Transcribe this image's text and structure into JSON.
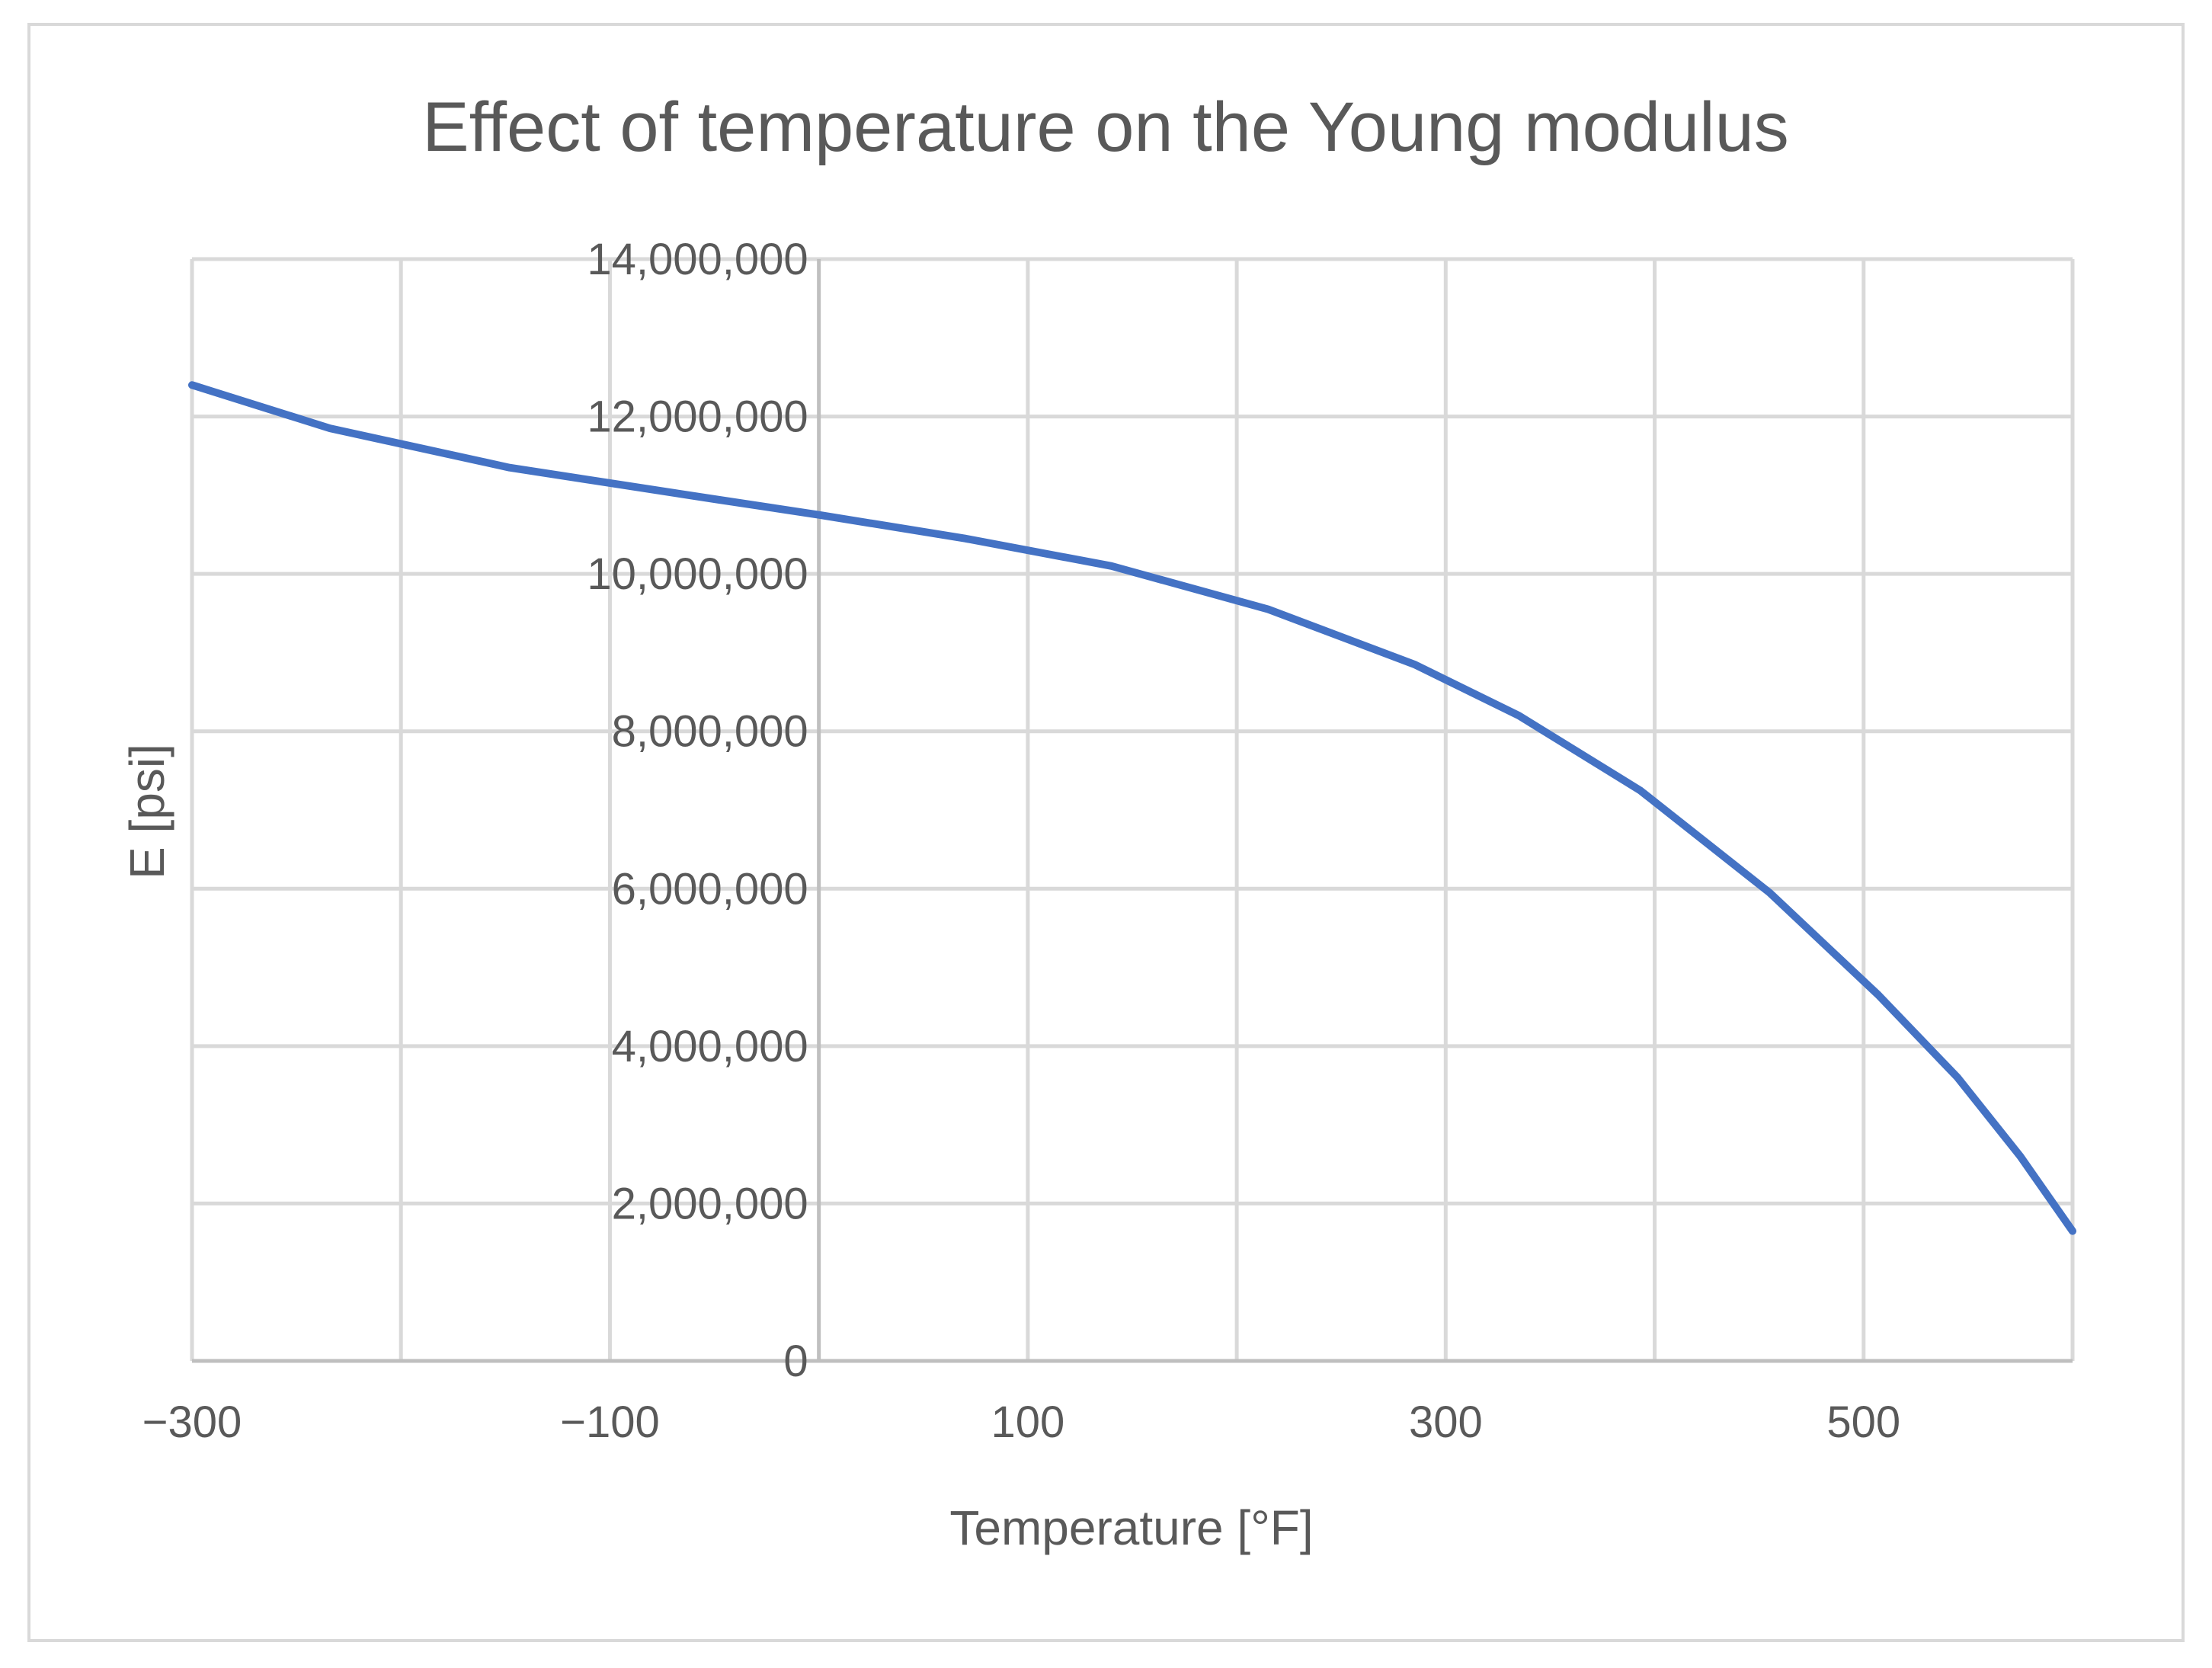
{
  "chart_data": {
    "type": "line",
    "title": "Effect of temperature on the Young modulus",
    "xlabel": "Temperature [°F]",
    "ylabel": "E [psi]",
    "xlim": [
      -300,
      600
    ],
    "ylim": [
      0,
      14000000
    ],
    "x_ticks": [
      -300,
      -200,
      -100,
      0,
      100,
      200,
      300,
      400,
      500,
      600
    ],
    "x_tick_labels": [
      "−300",
      "−100",
      "100",
      "300",
      "500"
    ],
    "x_tick_label_values": [
      -300,
      -100,
      100,
      300,
      500
    ],
    "y_ticks": [
      0,
      2000000,
      4000000,
      6000000,
      8000000,
      10000000,
      12000000,
      14000000
    ],
    "y_tick_labels": [
      "0",
      "2,000,000",
      "4,000,000",
      "6,000,000",
      "8,000,000",
      "10,000,000",
      "12,000,000",
      "14,000,000"
    ],
    "y_axis_at_x": 0,
    "grid": true,
    "series": [
      {
        "name": "E",
        "color": "#4472c4",
        "x": [
          -300,
          -234,
          -148,
          -50,
          0,
          70,
          140,
          215,
          285,
          335,
          393,
          455,
          507,
          545,
          575,
          600
        ],
        "y": [
          12400000,
          11850000,
          11350000,
          10950000,
          10750000,
          10450000,
          10100000,
          9550000,
          8850000,
          8200000,
          7250000,
          5950000,
          4650000,
          3600000,
          2600000,
          1650000
        ]
      }
    ]
  }
}
